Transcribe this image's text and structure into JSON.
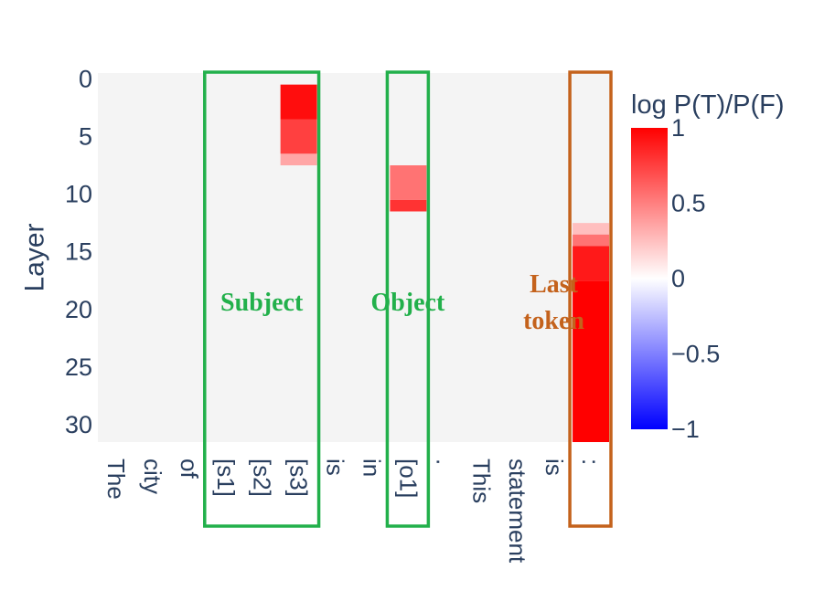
{
  "chart_data": {
    "type": "heatmap",
    "title": "",
    "xlabel": "",
    "ylabel": "Layer",
    "x_categories": [
      "The",
      "city",
      "of",
      "[s1]",
      "[s2]",
      "[s3]",
      "is",
      "in",
      "[o1]",
      ".",
      "This",
      "statement",
      "is",
      ":"
    ],
    "y_range": [
      0,
      31
    ],
    "y_ticks": [
      0,
      5,
      10,
      15,
      20,
      25,
      30
    ],
    "cells": [
      {
        "token": "[s3]",
        "from_layer": 1,
        "to_layer": 3,
        "value": 0.95
      },
      {
        "token": "[s3]",
        "from_layer": 4,
        "to_layer": 6,
        "value": 0.75
      },
      {
        "token": "[s3]",
        "from_layer": 7,
        "to_layer": 7,
        "value": 0.35
      },
      {
        "token": "[o1]",
        "from_layer": 8,
        "to_layer": 10,
        "value": 0.55
      },
      {
        "token": "[o1]",
        "from_layer": 11,
        "to_layer": 11,
        "value": 0.8
      },
      {
        "token": ":",
        "from_layer": 13,
        "to_layer": 13,
        "value": 0.25
      },
      {
        "token": ":",
        "from_layer": 14,
        "to_layer": 14,
        "value": 0.55
      },
      {
        "token": ":",
        "from_layer": 15,
        "to_layer": 17,
        "value": 0.9
      },
      {
        "token": ":",
        "from_layer": 18,
        "to_layer": 31,
        "value": 1.0
      }
    ],
    "colorbar": {
      "title": "log P(T)/P(F)",
      "range": [
        -1,
        1
      ],
      "ticks": [
        1,
        0.5,
        0,
        -0.5,
        -1
      ],
      "tick_labels": [
        "1",
        "0.5",
        "0",
        "−0.5",
        "−1"
      ],
      "colors": {
        "high": "#ff0000",
        "mid": "#ffffff",
        "low": "#0000ff"
      }
    },
    "background_color": "#f4f4f4",
    "annotations": [
      {
        "label": "Subject",
        "tokens": [
          "[s1]",
          "[s2]",
          "[s3]"
        ],
        "color": "#22b04b"
      },
      {
        "label": "Object",
        "tokens": [
          "[o1]"
        ],
        "color": "#22b04b"
      },
      {
        "label_lines": [
          "Last",
          "token"
        ],
        "tokens": [
          ":"
        ],
        "color": "#c4621c"
      }
    ]
  }
}
